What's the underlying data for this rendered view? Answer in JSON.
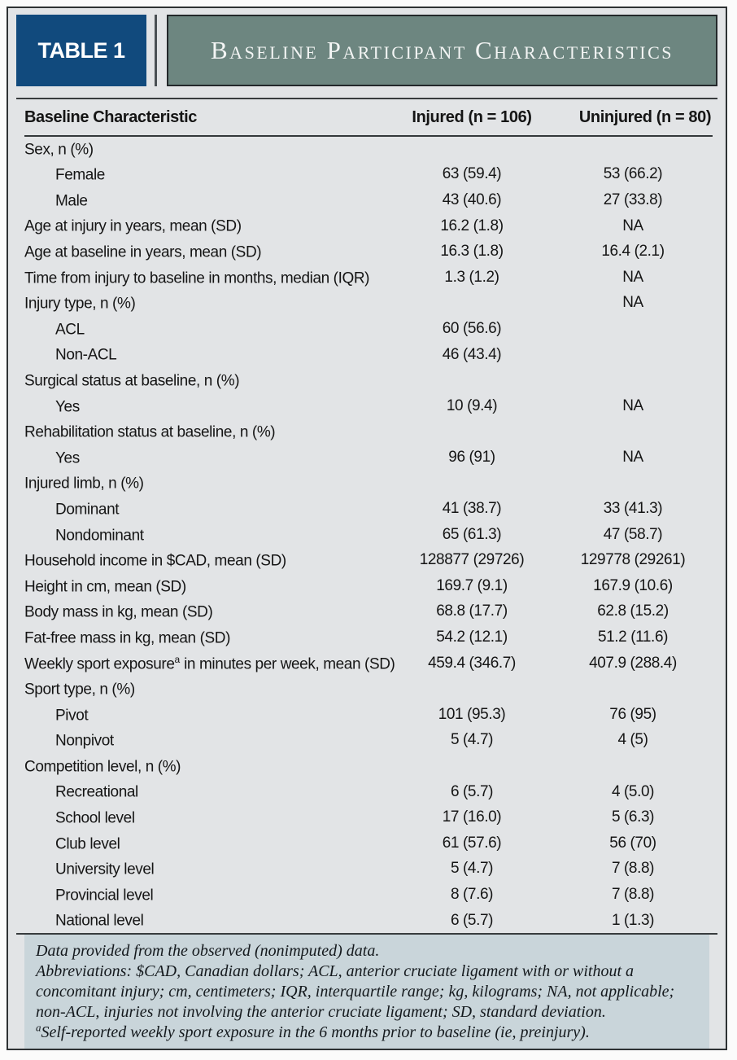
{
  "colors": {
    "badge_blue": "#114a7d",
    "banner_green": "#6d8680",
    "page_gray": "#e2e4e6",
    "footnote_bg": "#c9d5da"
  },
  "badge_label": "TABLE 1",
  "title": "Baseline Participant Characteristics",
  "table": {
    "columns": [
      "Baseline Characteristic",
      "Injured (n = 106)",
      "Uninjured (n = 80)"
    ],
    "rows": [
      {
        "label": "Sex, n (%)",
        "indent": false,
        "injured": "",
        "uninjured": ""
      },
      {
        "label": "Female",
        "indent": true,
        "injured": "63 (59.4)",
        "uninjured": "53 (66.2)"
      },
      {
        "label": "Male",
        "indent": true,
        "injured": "43 (40.6)",
        "uninjured": "27 (33.8)"
      },
      {
        "label": "Age at injury in years, mean (SD)",
        "indent": false,
        "injured": "16.2 (1.8)",
        "uninjured": "NA"
      },
      {
        "label": "Age at baseline in years, mean (SD)",
        "indent": false,
        "injured": "16.3 (1.8)",
        "uninjured": "16.4 (2.1)"
      },
      {
        "label": "Time from injury to baseline in months, median (IQR)",
        "indent": false,
        "injured": "1.3 (1.2)",
        "uninjured": "NA"
      },
      {
        "label": "Injury type, n (%)",
        "indent": false,
        "injured": "",
        "uninjured": "NA"
      },
      {
        "label": "ACL",
        "indent": true,
        "injured": "60 (56.6)",
        "uninjured": ""
      },
      {
        "label": "Non-ACL",
        "indent": true,
        "injured": "46 (43.4)",
        "uninjured": ""
      },
      {
        "label": "Surgical status at baseline, n (%)",
        "indent": false,
        "injured": "",
        "uninjured": ""
      },
      {
        "label": "Yes",
        "indent": true,
        "injured": "10 (9.4)",
        "uninjured": "NA"
      },
      {
        "label": "Rehabilitation status at baseline, n (%)",
        "indent": false,
        "injured": "",
        "uninjured": ""
      },
      {
        "label": "Yes",
        "indent": true,
        "injured": "96 (91)",
        "uninjured": "NA"
      },
      {
        "label": "Injured limb, n (%)",
        "indent": false,
        "injured": "",
        "uninjured": ""
      },
      {
        "label": "Dominant",
        "indent": true,
        "injured": "41 (38.7)",
        "uninjured": "33 (41.3)"
      },
      {
        "label": "Nondominant",
        "indent": true,
        "injured": "65 (61.3)",
        "uninjured": "47 (58.7)"
      },
      {
        "label": "Household income in $CAD, mean (SD)",
        "indent": false,
        "injured": "128877 (29726)",
        "uninjured": "129778 (29261)"
      },
      {
        "label": "Height in cm, mean (SD)",
        "indent": false,
        "injured": "169.7 (9.1)",
        "uninjured": "167.9 (10.6)"
      },
      {
        "label": "Body mass in kg, mean (SD)",
        "indent": false,
        "injured": "68.8 (17.7)",
        "uninjured": "62.8 (15.2)"
      },
      {
        "label": "Fat-free mass in kg, mean (SD)",
        "indent": false,
        "injured": "54.2 (12.1)",
        "uninjured": "51.2 (11.6)"
      },
      {
        "label": "Weekly sport exposure",
        "sup": "a",
        "label_suffix": " in minutes per week, mean (SD)",
        "indent": false,
        "injured": "459.4 (346.7)",
        "uninjured": "407.9 (288.4)"
      },
      {
        "label": "Sport type, n (%)",
        "indent": false,
        "injured": "",
        "uninjured": ""
      },
      {
        "label": "Pivot",
        "indent": true,
        "injured": "101 (95.3)",
        "uninjured": "76 (95)"
      },
      {
        "label": "Nonpivot",
        "indent": true,
        "injured": "5 (4.7)",
        "uninjured": "4 (5)"
      },
      {
        "label": "Competition level, n (%)",
        "indent": false,
        "injured": "",
        "uninjured": ""
      },
      {
        "label": "Recreational",
        "indent": true,
        "injured": "6 (5.7)",
        "uninjured": "4 (5.0)"
      },
      {
        "label": "School level",
        "indent": true,
        "injured": "17 (16.0)",
        "uninjured": "5 (6.3)"
      },
      {
        "label": "Club level",
        "indent": true,
        "injured": "61 (57.6)",
        "uninjured": "56 (70)"
      },
      {
        "label": "University level",
        "indent": true,
        "injured": "5 (4.7)",
        "uninjured": "7 (8.8)"
      },
      {
        "label": "Provincial level",
        "indent": true,
        "injured": "8 (7.6)",
        "uninjured": "7 (8.8)"
      },
      {
        "label": "National level",
        "indent": true,
        "injured": "6 (5.7)",
        "uninjured": "1 (1.3)"
      }
    ]
  },
  "footnotes": {
    "line1": "Data provided from the observed (nonimputed) data.",
    "line2": "Abbreviations: $CAD, Canadian dollars; ACL, anterior cruciate ligament with or without a concomitant injury; cm, centimeters; IQR, interquartile range; kg, kilograms; NA, not applicable; non-ACL, injuries not involving the anterior cruciate ligament; SD, standard deviation.",
    "line3_marker": "a",
    "line3": "Self-reported weekly sport exposure in the 6 months prior to baseline (ie, preinjury)."
  }
}
